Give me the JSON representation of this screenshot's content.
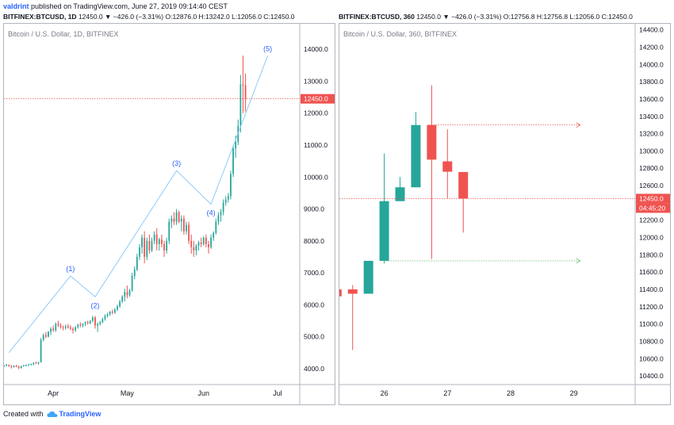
{
  "header": {
    "user": "valdrint",
    "published_text": "published on TradingView.com, June 27, 2019 09:14:40 CEST",
    "left_symbol": "BITFINEX:BTCUSD, 1D",
    "left_ohlc": "12450.0 ▼ −426.0 (−3.31%) O:12876.0 H:13242.0 L:12056.0 C:12450.0",
    "right_symbol": "BITFINEX:BTCUSD, 360",
    "right_ohlc": "12450.0 ▼ −426.0 (−3.31%) O:12756.8 H:12756.8 L:12056.0 C:12450.0"
  },
  "footer": {
    "created_with": "Created with",
    "brand": "TradingView"
  },
  "colors": {
    "up": "#26a69a",
    "down": "#ef5350",
    "wave": "#90caf9",
    "wave_label": "#2962ff",
    "support": "#66bb6a",
    "resistance": "#ef5350",
    "price_tag": "#ef5350"
  },
  "chart_data": [
    {
      "type": "candlestick",
      "title": "Bitcoin / U.S. Dollar, 1D, BITFINEX",
      "interval": "1D",
      "ylim": [
        3500,
        14800
      ],
      "y_ticks": [
        "4000.0",
        "5000.0",
        "6000.0",
        "7000.0",
        "8000.0",
        "9000.0",
        "10000.0",
        "11000.0",
        "12000.0",
        "13000.0",
        "14000.0"
      ],
      "x_ticks": [
        "Apr",
        "May",
        "Jun",
        "Jul"
      ],
      "x_tick_days": [
        81,
        111,
        142,
        172
      ],
      "xlim": [
        61,
        181
      ],
      "start_date": "2019-03-01",
      "current_price_label": "12450.0",
      "current_price": 12450,
      "elliott_wave": {
        "labels": [
          "(1)",
          "(2)",
          "(3)",
          "(4)",
          "(5)"
        ],
        "points": [
          [
            63,
            4500
          ],
          [
            88,
            6900
          ],
          [
            98,
            6250
          ],
          [
            131,
            10200
          ],
          [
            145,
            9150
          ],
          [
            168,
            13800
          ]
        ]
      },
      "candles": [
        [
          61,
          4080,
          4120,
          4050,
          4100
        ],
        [
          62,
          4100,
          4150,
          4070,
          4120
        ],
        [
          63,
          4120,
          4130,
          4060,
          4080
        ],
        [
          64,
          4080,
          4110,
          4000,
          4050
        ],
        [
          65,
          4050,
          4100,
          4030,
          4090
        ],
        [
          66,
          4090,
          4120,
          4040,
          4060
        ],
        [
          67,
          4060,
          4100,
          3980,
          4020
        ],
        [
          68,
          4020,
          4090,
          4000,
          4080
        ],
        [
          69,
          4080,
          4120,
          4060,
          4100
        ],
        [
          70,
          4100,
          4130,
          4070,
          4110
        ],
        [
          71,
          4110,
          4150,
          4080,
          4130
        ],
        [
          72,
          4130,
          4160,
          4100,
          4140
        ],
        [
          73,
          4140,
          4200,
          4100,
          4180
        ],
        [
          74,
          4180,
          4220,
          4140,
          4160
        ],
        [
          75,
          4160,
          4210,
          4130,
          4200
        ],
        [
          76,
          4200,
          4960,
          4190,
          4900
        ],
        [
          77,
          4900,
          5100,
          4850,
          5050
        ],
        [
          78,
          5050,
          5150,
          4950,
          5000
        ],
        [
          79,
          5000,
          5180,
          4980,
          5150
        ],
        [
          80,
          5150,
          5300,
          5050,
          5250
        ],
        [
          81,
          5250,
          5350,
          5150,
          5200
        ],
        [
          82,
          5200,
          5450,
          5150,
          5400
        ],
        [
          83,
          5400,
          5500,
          5300,
          5350
        ],
        [
          84,
          5350,
          5420,
          5250,
          5300
        ],
        [
          85,
          5300,
          5350,
          5200,
          5280
        ],
        [
          86,
          5280,
          5380,
          5220,
          5330
        ],
        [
          87,
          5330,
          5400,
          5250,
          5290
        ],
        [
          88,
          5290,
          5360,
          5200,
          5250
        ],
        [
          89,
          5250,
          5300,
          5100,
          5200
        ],
        [
          90,
          5200,
          5330,
          5150,
          5300
        ],
        [
          91,
          5300,
          5400,
          5250,
          5380
        ],
        [
          92,
          5380,
          5450,
          5300,
          5350
        ],
        [
          93,
          5350,
          5420,
          5290,
          5400
        ],
        [
          94,
          5400,
          5480,
          5330,
          5450
        ],
        [
          95,
          5450,
          5500,
          5380,
          5420
        ],
        [
          96,
          5420,
          5520,
          5390,
          5500
        ],
        [
          97,
          5500,
          5650,
          5450,
          5600
        ],
        [
          98,
          5600,
          5650,
          5250,
          5350
        ],
        [
          99,
          5350,
          5450,
          5150,
          5400
        ],
        [
          100,
          5400,
          5500,
          5350,
          5450
        ],
        [
          101,
          5450,
          5600,
          5420,
          5550
        ],
        [
          102,
          5550,
          5700,
          5500,
          5650
        ],
        [
          103,
          5650,
          5750,
          5600,
          5700
        ],
        [
          104,
          5700,
          5800,
          5650,
          5780
        ],
        [
          105,
          5780,
          5850,
          5700,
          5750
        ],
        [
          106,
          5750,
          5900,
          5720,
          5850
        ],
        [
          107,
          5850,
          6000,
          5800,
          5950
        ],
        [
          108,
          5950,
          6150,
          5900,
          6100
        ],
        [
          109,
          6100,
          6300,
          6050,
          6250
        ],
        [
          110,
          6250,
          6500,
          6100,
          6400
        ],
        [
          111,
          6400,
          6600,
          6200,
          6300
        ],
        [
          112,
          6300,
          6500,
          6250,
          6450
        ],
        [
          113,
          6450,
          7000,
          6400,
          6900
        ],
        [
          114,
          6900,
          7200,
          6800,
          7100
        ],
        [
          115,
          7100,
          7600,
          7050,
          7500
        ],
        [
          116,
          7500,
          7900,
          7400,
          7800
        ],
        [
          117,
          7800,
          8200,
          7600,
          8100
        ],
        [
          118,
          8100,
          8300,
          7300,
          7500
        ],
        [
          119,
          7500,
          8100,
          7400,
          8000
        ],
        [
          120,
          8000,
          8200,
          7600,
          7700
        ],
        [
          121,
          7700,
          8100,
          7650,
          8000
        ],
        [
          122,
          8000,
          8300,
          7900,
          8200
        ],
        [
          123,
          8200,
          8400,
          7700,
          7900
        ],
        [
          124,
          7900,
          8100,
          7700,
          8050
        ],
        [
          125,
          8050,
          8200,
          7800,
          7900
        ],
        [
          126,
          7900,
          8000,
          7500,
          7700
        ],
        [
          127,
          7700,
          8100,
          7600,
          8000
        ],
        [
          128,
          8000,
          8700,
          7900,
          8600
        ],
        [
          129,
          8600,
          8800,
          8400,
          8700
        ],
        [
          130,
          8700,
          8900,
          8500,
          8600
        ],
        [
          131,
          8600,
          9000,
          8500,
          8900
        ],
        [
          132,
          8900,
          8950,
          8550,
          8600
        ],
        [
          133,
          8600,
          8800,
          8300,
          8700
        ],
        [
          134,
          8700,
          8800,
          8200,
          8300
        ],
        [
          135,
          8300,
          8600,
          8200,
          8500
        ],
        [
          136,
          8500,
          8600,
          7900,
          8000
        ],
        [
          137,
          8000,
          8200,
          7600,
          7800
        ],
        [
          138,
          7800,
          8000,
          7500,
          7700
        ],
        [
          139,
          7700,
          7900,
          7550,
          7850
        ],
        [
          140,
          7850,
          8000,
          7700,
          7950
        ],
        [
          141,
          7950,
          8100,
          7800,
          7900
        ],
        [
          142,
          7900,
          8150,
          7850,
          8100
        ],
        [
          143,
          8100,
          8200,
          7800,
          7900
        ],
        [
          144,
          7900,
          8000,
          7600,
          7800
        ],
        [
          145,
          7800,
          8200,
          7750,
          8100
        ],
        [
          146,
          8100,
          8300,
          8000,
          8250
        ],
        [
          147,
          8250,
          8700,
          8200,
          8600
        ],
        [
          148,
          8600,
          8900,
          8500,
          8800
        ],
        [
          149,
          8800,
          9000,
          8600,
          8900
        ],
        [
          150,
          8900,
          9300,
          8800,
          9200
        ],
        [
          151,
          9200,
          9400,
          9100,
          9300
        ],
        [
          152,
          9300,
          9500,
          9200,
          9400
        ],
        [
          153,
          9400,
          10200,
          9300,
          10100
        ],
        [
          154,
          10100,
          11000,
          10000,
          10900
        ],
        [
          155,
          10900,
          11300,
          10600,
          11100
        ],
        [
          156,
          11100,
          11800,
          11000,
          11600
        ],
        [
          157,
          11600,
          13200,
          11400,
          12900
        ],
        [
          158,
          12900,
          13800,
          12000,
          12876
        ],
        [
          159,
          12876,
          13242,
          12056,
          12450
        ]
      ]
    },
    {
      "type": "candlestick",
      "title": "Bitcoin / U.S. Dollar, 360, BITFINEX",
      "interval": "360",
      "ylim": [
        10300,
        14470
      ],
      "y_ticks": [
        "10400.0",
        "10600.0",
        "10800.0",
        "11000.0",
        "11200.0",
        "11400.0",
        "11600.0",
        "11800.0",
        "12000.0",
        "12200.0",
        "12400.0",
        "12600.0",
        "12800.0",
        "13000.0",
        "13200.0",
        "13400.0",
        "13600.0",
        "13800.0",
        "14000.0",
        "14200.0",
        "14400.0"
      ],
      "x_ticks": [
        "26",
        "27",
        "28",
        "29"
      ],
      "x_tick_values": [
        26,
        27,
        28,
        29
      ],
      "xlim": [
        25.29,
        29.97
      ],
      "current_price_label": "12450.0",
      "current_price": 12450,
      "countdown": "04:45:20",
      "resistance_level": 13300,
      "support_level": 11730,
      "candles": [
        [
          25.25,
          11400,
          11450,
          11350,
          11320
        ],
        [
          25.5,
          11400,
          11450,
          10700,
          11350
        ],
        [
          25.75,
          11350,
          11730,
          11350,
          11730
        ],
        [
          26.0,
          11730,
          12970,
          11700,
          12420
        ],
        [
          26.25,
          12420,
          12700,
          12420,
          12580
        ],
        [
          26.5,
          12580,
          13450,
          12580,
          13300
        ],
        [
          26.75,
          13300,
          13760,
          11750,
          12900
        ],
        [
          27.0,
          12880,
          13250,
          12450,
          12760
        ],
        [
          27.25,
          12757,
          12757,
          12056,
          12450
        ]
      ]
    }
  ]
}
